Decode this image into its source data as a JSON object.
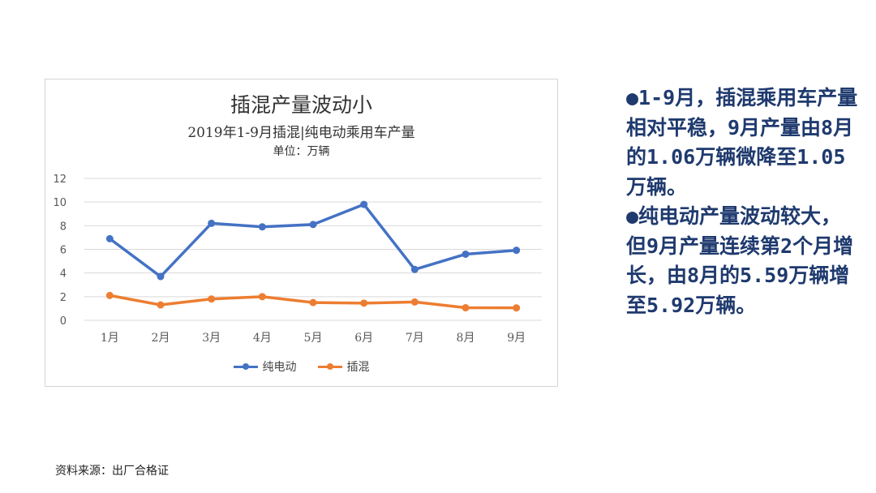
{
  "chart_data": {
    "type": "line",
    "title": "插混产量波动小",
    "subtitle": "2019年1-9月插混|纯电动乘用车产量",
    "unit": "单位：万辆",
    "categories": [
      "1月",
      "2月",
      "3月",
      "4月",
      "5月",
      "6月",
      "7月",
      "8月",
      "9月"
    ],
    "yticks": [
      "0",
      "2",
      "4",
      "6",
      "8",
      "10",
      "12"
    ],
    "ylim": [
      0,
      12
    ],
    "grid": true,
    "legend_position": "bottom",
    "series": [
      {
        "name": "纯电动",
        "color": "#4472c4",
        "values": [
          6.9,
          3.7,
          8.2,
          7.9,
          8.1,
          9.8,
          4.3,
          5.59,
          5.92
        ]
      },
      {
        "name": "插混",
        "color": "#ed7d31",
        "values": [
          2.1,
          1.3,
          1.8,
          2.0,
          1.5,
          1.45,
          1.55,
          1.06,
          1.05
        ]
      }
    ]
  },
  "side": {
    "p1": "●1-9月，插混乘用车产量相对平稳，9月产量由8月的1.06万辆微降至1.05万辆。",
    "p2": "●纯电动产量波动较大，但9月产量连续第2个月增长，由8月的5.59万辆增至5.92万辆。"
  },
  "source": "资料来源：出厂合格证"
}
